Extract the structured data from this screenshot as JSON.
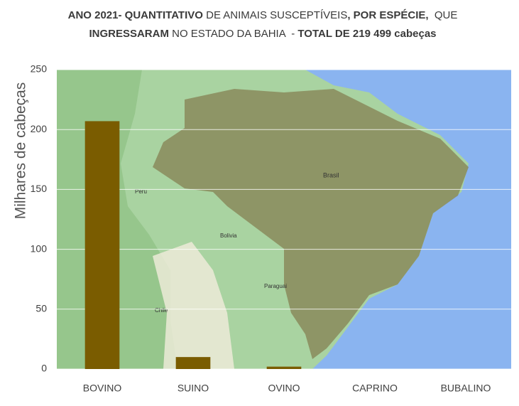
{
  "chart_data": {
    "type": "bar",
    "title": [
      [
        {
          "text": "ANO 2021- QUANTITATIVO",
          "bold": true
        },
        {
          "text": " DE ANIMAIS SUSCEPTÍVEIS",
          "bold": false
        },
        {
          "text": ", POR ESPÉCIE,",
          "bold": true
        },
        {
          "text": "  QUE",
          "bold": false
        }
      ],
      [
        {
          "text": "INGRESSARAM",
          "bold": true
        },
        {
          "text": " NO ESTADO DA BAHIA  - ",
          "bold": false
        },
        {
          "text": "TOTAL DE 219 499 cabeças",
          "bold": true
        }
      ]
    ],
    "y_label": "Milhares de cabeças",
    "categories": [
      "BOVINO",
      "SUINO",
      "OVINO",
      "CAPRINO",
      "BUBALINO"
    ],
    "values": [
      207,
      10,
      2,
      0,
      0
    ],
    "color": "#7a5c00",
    "ylim": [
      0,
      250
    ],
    "yticks": [
      0,
      50,
      100,
      150,
      200,
      250
    ],
    "grid": true
  }
}
